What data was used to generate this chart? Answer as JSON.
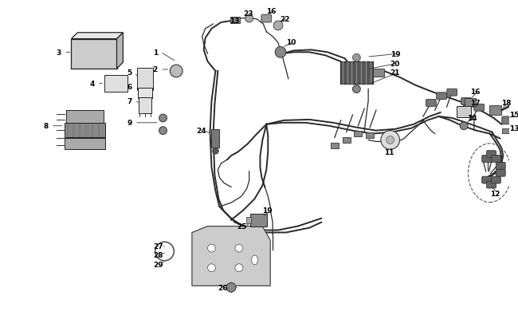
{
  "bg_color": "#ffffff",
  "wire_color": "#2a2a2a",
  "part_color": "#333333",
  "label_color": "#000000",
  "label_fontsize": 6.5,
  "wire_lw": 1.4,
  "thin_wire_lw": 0.9
}
